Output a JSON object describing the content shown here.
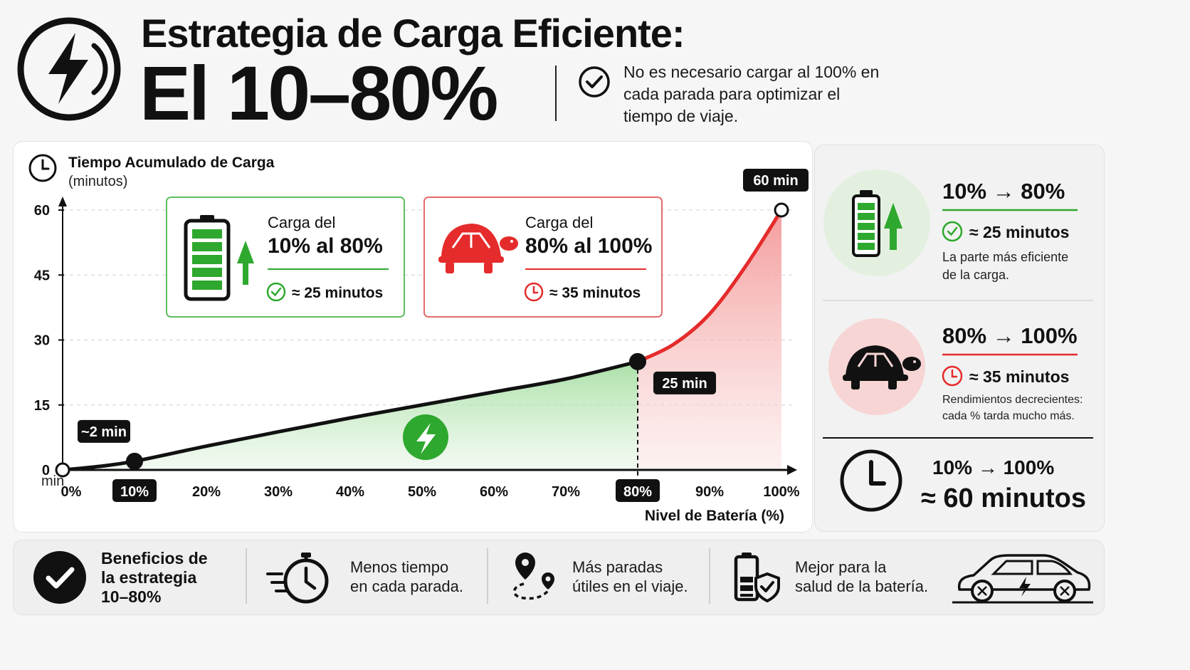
{
  "header": {
    "title_line1": "Estrategia de Carga Eficiente:",
    "title_line2": "El 10–80%",
    "subtitle": "No es necesario cargar al 100% en cada parada para optimizar el tiempo de viaje."
  },
  "colors": {
    "green": "#2ea82e",
    "red": "#e52b2b",
    "dark": "#111111"
  },
  "chart_data": {
    "type": "area",
    "title": "Tiempo Acumulado de Carga",
    "ylabel_unit": "(minutos)",
    "xlabel": "Nivel de Batería (%)",
    "y_tick_labels": [
      "0",
      "15",
      "30",
      "45",
      "60"
    ],
    "y_unit_label": "min",
    "ylim": [
      0,
      60
    ],
    "x_tick_labels": [
      "0%",
      "10%",
      "20%",
      "30%",
      "40%",
      "50%",
      "60%",
      "70%",
      "80%",
      "90%",
      "100%"
    ],
    "highlighted_ticks": [
      "10%",
      "80%"
    ],
    "xlim": [
      0,
      100
    ],
    "series": [
      {
        "name": "",
        "color": "#111111",
        "x": [
          0,
          5,
          10,
          20,
          30,
          40,
          50,
          60,
          70,
          80
        ],
        "y": [
          0,
          0.8,
          2,
          5.5,
          8.8,
          12,
          15,
          18,
          21,
          25
        ]
      },
      {
        "name": "",
        "color": "#e52b2b",
        "x": [
          80,
          85,
          90,
          95,
          100
        ],
        "y": [
          25,
          29,
          36,
          47,
          60
        ]
      }
    ],
    "points": [
      {
        "x": 0,
        "y": 0,
        "label": ""
      },
      {
        "x": 10,
        "y": 2,
        "label": "~2 min"
      },
      {
        "x": 80,
        "y": 25,
        "label": "25 min"
      },
      {
        "x": 100,
        "y": 60,
        "label": "60 min"
      }
    ],
    "grid": true
  },
  "callouts": {
    "green": {
      "line1": "Carga del",
      "line2": "10% al 80%",
      "time": "≈ 25 minutos",
      "icon": "battery-charging-icon"
    },
    "red": {
      "line1": "Carga del",
      "line2": "80% al 100%",
      "time": "≈ 35 minutos",
      "icon": "turtle-icon"
    }
  },
  "side": {
    "fast": {
      "title": "10% → 80%",
      "time": "≈ 25 minutos",
      "desc_line1": "La parte más eficiente",
      "desc_line2": "de la carga."
    },
    "slow": {
      "title": "80% → 100%",
      "time": "≈ 35 minutos",
      "desc_line1": "Rendimientos decrecientes:",
      "desc_line2": "cada % tarda mucho más."
    },
    "total": {
      "title": "10% → 100%",
      "time": "≈ 60 minutos"
    }
  },
  "benefits": {
    "heading_line1": "Beneficios de",
    "heading_line2": "la estrategia",
    "heading_line3": "10–80%",
    "items": [
      {
        "line1": "Menos tiempo",
        "line2": "en cada parada.",
        "icon": "stopwatch-icon"
      },
      {
        "line1": "Más paradas",
        "line2": "útiles en el viaje.",
        "icon": "route-pin-icon"
      },
      {
        "line1": "Mejor para la",
        "line2": "salud de la batería.",
        "icon": "battery-shield-icon"
      }
    ],
    "car_icon": "electric-car-icon"
  }
}
